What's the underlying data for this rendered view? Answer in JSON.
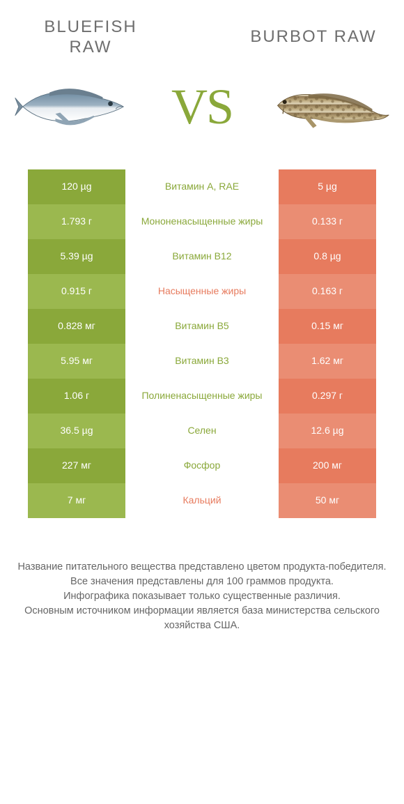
{
  "colors": {
    "green_dark": "#8aa83a",
    "green_light": "#9bb84f",
    "coral_dark": "#e77b5e",
    "coral_light": "#ea8d73",
    "mid_green": "#8aa83a",
    "mid_coral": "#e77b5e",
    "white": "#ffffff",
    "text": "#666666",
    "vs": "#8aa83a"
  },
  "header": {
    "left_line1": "BLUEFISH",
    "left_line2": "RAW",
    "right_line1": "BURBOT RAW",
    "vs": "VS"
  },
  "rows": [
    {
      "left": "120 µg",
      "mid": "Витамин A, RAE",
      "right": "5 µg",
      "winner": "left"
    },
    {
      "left": "1.793 г",
      "mid": "Мононенасыщенные жиры",
      "right": "0.133 г",
      "winner": "left"
    },
    {
      "left": "5.39 µg",
      "mid": "Витамин B12",
      "right": "0.8 µg",
      "winner": "left"
    },
    {
      "left": "0.915 г",
      "mid": "Насыщенные жиры",
      "right": "0.163 г",
      "winner": "right"
    },
    {
      "left": "0.828 мг",
      "mid": "Витамин B5",
      "right": "0.15 мг",
      "winner": "left"
    },
    {
      "left": "5.95 мг",
      "mid": "Витамин B3",
      "right": "1.62 мг",
      "winner": "left"
    },
    {
      "left": "1.06 г",
      "mid": "Полиненасыщенные жиры",
      "right": "0.297 г",
      "winner": "left"
    },
    {
      "left": "36.5 µg",
      "mid": "Селен",
      "right": "12.6 µg",
      "winner": "left"
    },
    {
      "left": "227 мг",
      "mid": "Фосфор",
      "right": "200 мг",
      "winner": "left"
    },
    {
      "left": "7 мг",
      "mid": "Кальций",
      "right": "50 мг",
      "winner": "right"
    }
  ],
  "footer": {
    "l1": "Название питательного вещества представлено цветом продукта-победителя.",
    "l2": "Все значения представлены для 100 граммов продукта.",
    "l3": "Инфографика показывает только существенные различия.",
    "l4": "Основным источником информации является база министерства сельского хозяйства США."
  }
}
